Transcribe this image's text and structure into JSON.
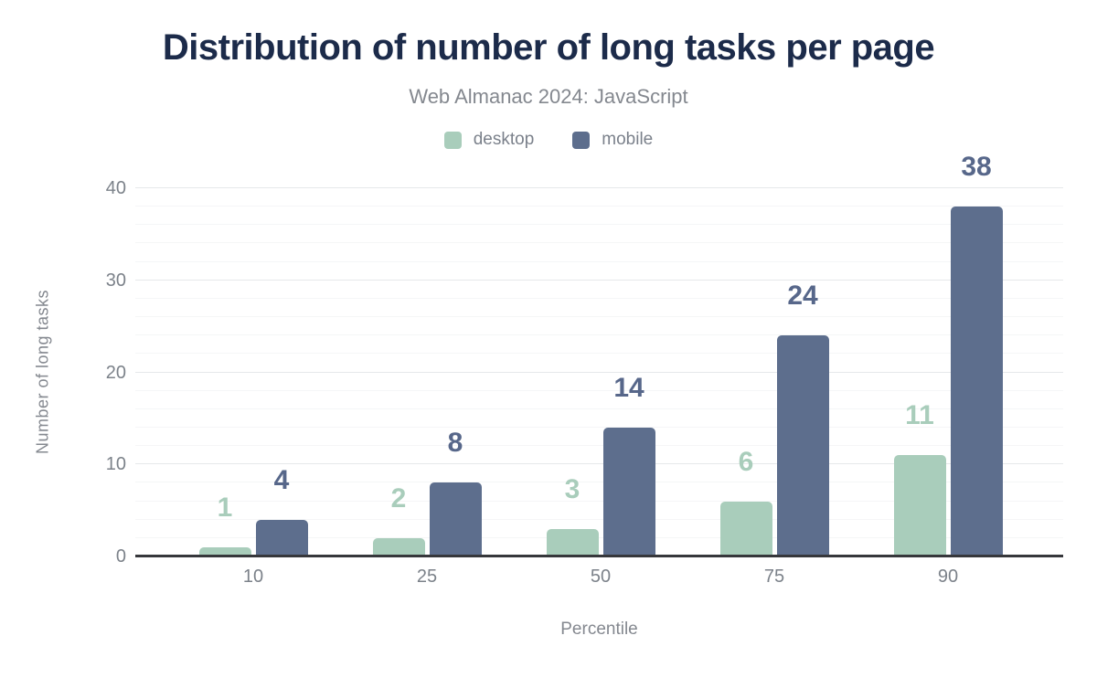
{
  "title": "Distribution of number of long tasks per page",
  "subtitle": "Web Almanac 2024: JavaScript",
  "colors": {
    "title_text": "#1c2b4a",
    "muted_text": "#84888f",
    "tick_text": "#7c828a",
    "axis_line": "#36373b",
    "major_gridline": "#e6e8ea",
    "minor_gridline": "#f5f6f7",
    "desktop": "#a9cdbb",
    "mobile": "#5d6e8d",
    "desktop_label": "#a9cdbb",
    "mobile_label": "#57678a"
  },
  "chart_data": {
    "type": "bar",
    "title": "Distribution of number of long tasks per page",
    "subtitle": "Web Almanac 2024: JavaScript",
    "categories": [
      "10",
      "25",
      "50",
      "75",
      "90"
    ],
    "series": [
      {
        "name": "desktop",
        "color": "#a9cdbb",
        "label_color": "#a9cdbb",
        "values": [
          1,
          2,
          3,
          6,
          11
        ]
      },
      {
        "name": "mobile",
        "color": "#5d6e8d",
        "label_color": "#57678a",
        "values": [
          4,
          8,
          14,
          24,
          38
        ]
      }
    ],
    "xlabel": "Percentile",
    "ylabel": "Number of long tasks",
    "ylim": [
      0,
      40
    ],
    "yticks": [
      0,
      10,
      20,
      30,
      40
    ],
    "minor_step": 2,
    "major_step": 10,
    "grid": "horizontal",
    "legend_position": "top",
    "bar_value_labels": true
  }
}
